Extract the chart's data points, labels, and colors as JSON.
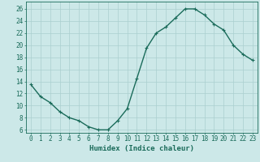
{
  "x": [
    0,
    1,
    2,
    3,
    4,
    5,
    6,
    7,
    8,
    9,
    10,
    11,
    12,
    13,
    14,
    15,
    16,
    17,
    18,
    19,
    20,
    21,
    22,
    23
  ],
  "y": [
    13.5,
    11.5,
    10.5,
    9.0,
    8.0,
    7.5,
    6.5,
    6.0,
    6.0,
    7.5,
    9.5,
    14.5,
    19.5,
    22.0,
    23.0,
    24.5,
    26.0,
    26.0,
    25.0,
    23.5,
    22.5,
    20.0,
    18.5,
    17.5
  ],
  "line_color": "#1a6b5a",
  "marker": "+",
  "xlabel": "Humidex (Indice chaleur)",
  "ylabel": "",
  "title": "",
  "xlim": [
    -0.5,
    23.5
  ],
  "ylim": [
    5.5,
    27.2
  ],
  "yticks": [
    6,
    8,
    10,
    12,
    14,
    16,
    18,
    20,
    22,
    24,
    26
  ],
  "xticks": [
    0,
    1,
    2,
    3,
    4,
    5,
    6,
    7,
    8,
    9,
    10,
    11,
    12,
    13,
    14,
    15,
    16,
    17,
    18,
    19,
    20,
    21,
    22,
    23
  ],
  "xtick_labels": [
    "0",
    "1",
    "2",
    "3",
    "4",
    "5",
    "6",
    "7",
    "8",
    "9",
    "10",
    "11",
    "12",
    "13",
    "14",
    "15",
    "16",
    "17",
    "18",
    "19",
    "20",
    "21",
    "22",
    "23"
  ],
  "bg_color": "#cce8e8",
  "grid_color": "#aacfcf",
  "font_color": "#1a6b5a",
  "xlabel_fontsize": 6.5,
  "tick_fontsize": 5.5,
  "linewidth": 1.0,
  "markersize": 3.0
}
